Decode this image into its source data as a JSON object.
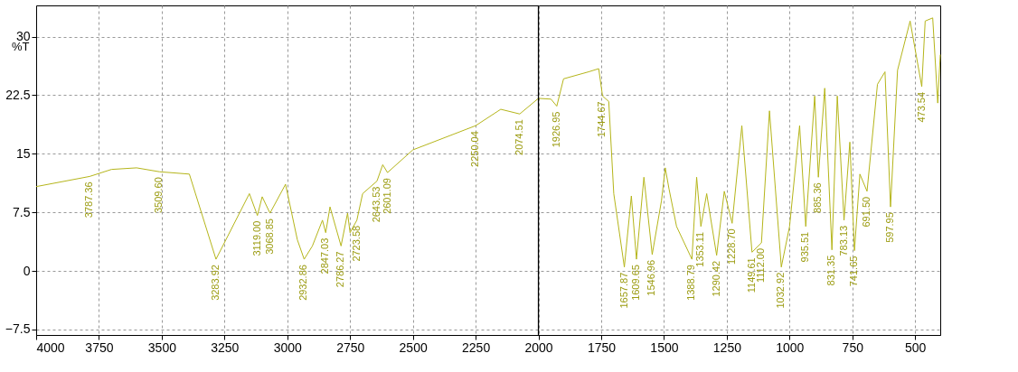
{
  "chart_data": {
    "type": "line",
    "ylabel": "%T",
    "xlim": [
      4000,
      400
    ],
    "ylim": [
      -8.2,
      34
    ],
    "xticks": [
      4000,
      3750,
      3500,
      3250,
      3000,
      2750,
      2500,
      2250,
      2000,
      1750,
      1500,
      1250,
      1000,
      750,
      500
    ],
    "yticks": [
      -7.5,
      0,
      7.5,
      15,
      22.5,
      30
    ],
    "grid": true,
    "marker": "none",
    "line_style": "solid",
    "ref_lines": [
      {
        "axis": "x",
        "value": 2000,
        "color": "#000000"
      }
    ],
    "series": [
      {
        "color": "#b5b51a",
        "x": [
          4000,
          3787,
          3700,
          3600,
          3509,
          3390,
          3283.92,
          3151,
          3119,
          3100,
          3068.85,
          3007,
          2960,
          2932.86,
          2900,
          2860,
          2847,
          2830,
          2786,
          2760,
          2750,
          2723,
          2700,
          2643,
          2620,
          2601,
          2500,
          2250,
          2150,
          2074.51,
          2000,
          1950,
          1926.95,
          1900,
          1800,
          1760,
          1744.67,
          1720,
          1700,
          1657.87,
          1630,
          1609.65,
          1580,
          1546.96,
          1510,
          1495,
          1480,
          1450,
          1388.79,
          1370,
          1353.11,
          1330,
          1290.42,
          1260,
          1228.7,
          1190,
          1149.61,
          1112,
          1080,
          1032.92,
          1000,
          960,
          935.51,
          900,
          885.36,
          860,
          831.35,
          810,
          783.13,
          760,
          741.65,
          720,
          691.5,
          650,
          620,
          597.95,
          570,
          520,
          473.54,
          460,
          430,
          410,
          400
        ],
        "values": [
          10.8,
          12.1,
          13.0,
          13.2,
          12.7,
          12.4,
          1.5,
          9.9,
          7.1,
          9.5,
          7.4,
          11.1,
          4.0,
          1.5,
          3.2,
          6.5,
          4.9,
          8.2,
          3.2,
          7.4,
          4.9,
          6.5,
          9.9,
          11.5,
          13.6,
          12.6,
          15.5,
          18.6,
          20.7,
          20.1,
          22.1,
          22.0,
          21.1,
          24.6,
          25.5,
          25.9,
          22.4,
          21.7,
          9.9,
          0.5,
          9.6,
          1.5,
          12,
          2.1,
          9,
          13.2,
          10.5,
          5.7,
          1.5,
          12,
          5.7,
          9.9,
          2,
          10.2,
          6.1,
          18.6,
          2.4,
          3.6,
          20.5,
          0.5,
          5.7,
          18.6,
          5.7,
          22.4,
          12,
          23.4,
          2.7,
          22.4,
          6.5,
          16.5,
          2.6,
          12.4,
          10.2,
          23.9,
          25.5,
          8.2,
          25.7,
          32,
          23.6,
          32,
          32.4,
          21.5,
          27.7
        ]
      }
    ],
    "annotations": [
      {
        "text": "3787.36",
        "x": 3787,
        "y": 12.1
      },
      {
        "text": "3509.60",
        "x": 3509,
        "y": 12.7
      },
      {
        "text": "3283.92",
        "x": 3283.92,
        "y": 1.5
      },
      {
        "text": "3119.00",
        "x": 3119,
        "y": 7.1
      },
      {
        "text": "3068.85",
        "x": 3068.85,
        "y": 7.4
      },
      {
        "text": "2932.86",
        "x": 2932.86,
        "y": 1.5
      },
      {
        "text": "2847.03",
        "x": 2847,
        "y": 4.9
      },
      {
        "text": "2786.27",
        "x": 2786,
        "y": 3.2
      },
      {
        "text": "2723.58",
        "x": 2723,
        "y": 6.5
      },
      {
        "text": "2643.53",
        "x": 2643,
        "y": 11.5
      },
      {
        "text": "2601.09",
        "x": 2601,
        "y": 12.6
      },
      {
        "text": "2250.04",
        "x": 2250,
        "y": 18.6
      },
      {
        "text": "2074.51",
        "x": 2074.51,
        "y": 20.1
      },
      {
        "text": "1926.95",
        "x": 1926.95,
        "y": 21.1
      },
      {
        "text": "1744.67",
        "x": 1744.67,
        "y": 22.4
      },
      {
        "text": "1657.87",
        "x": 1657.87,
        "y": 0.5
      },
      {
        "text": "1609.65",
        "x": 1609.65,
        "y": 1.5
      },
      {
        "text": "1546.96",
        "x": 1546.96,
        "y": 2.1
      },
      {
        "text": "1388.79",
        "x": 1388.79,
        "y": 1.5
      },
      {
        "text": "1353.11",
        "x": 1353.11,
        "y": 5.7
      },
      {
        "text": "1290.42",
        "x": 1290.42,
        "y": 2
      },
      {
        "text": "1228.70",
        "x": 1228.7,
        "y": 6.1
      },
      {
        "text": "1149.61",
        "x": 1149.61,
        "y": 2.4
      },
      {
        "text": "1112.00",
        "x": 1112,
        "y": 3.6
      },
      {
        "text": "1032.92",
        "x": 1032.92,
        "y": 0.5
      },
      {
        "text": "935.51",
        "x": 935.51,
        "y": 5.7
      },
      {
        "text": "885.36",
        "x": 885.36,
        "y": 12
      },
      {
        "text": "831.35",
        "x": 831.35,
        "y": 2.7
      },
      {
        "text": "783.13",
        "x": 783.13,
        "y": 6.5
      },
      {
        "text": "741.65",
        "x": 741.65,
        "y": 2.6
      },
      {
        "text": "691.50",
        "x": 691.5,
        "y": 10.2
      },
      {
        "text": "597.95",
        "x": 597.95,
        "y": 8.2
      },
      {
        "text": "473.54",
        "x": 473.54,
        "y": 23.6
      }
    ]
  }
}
